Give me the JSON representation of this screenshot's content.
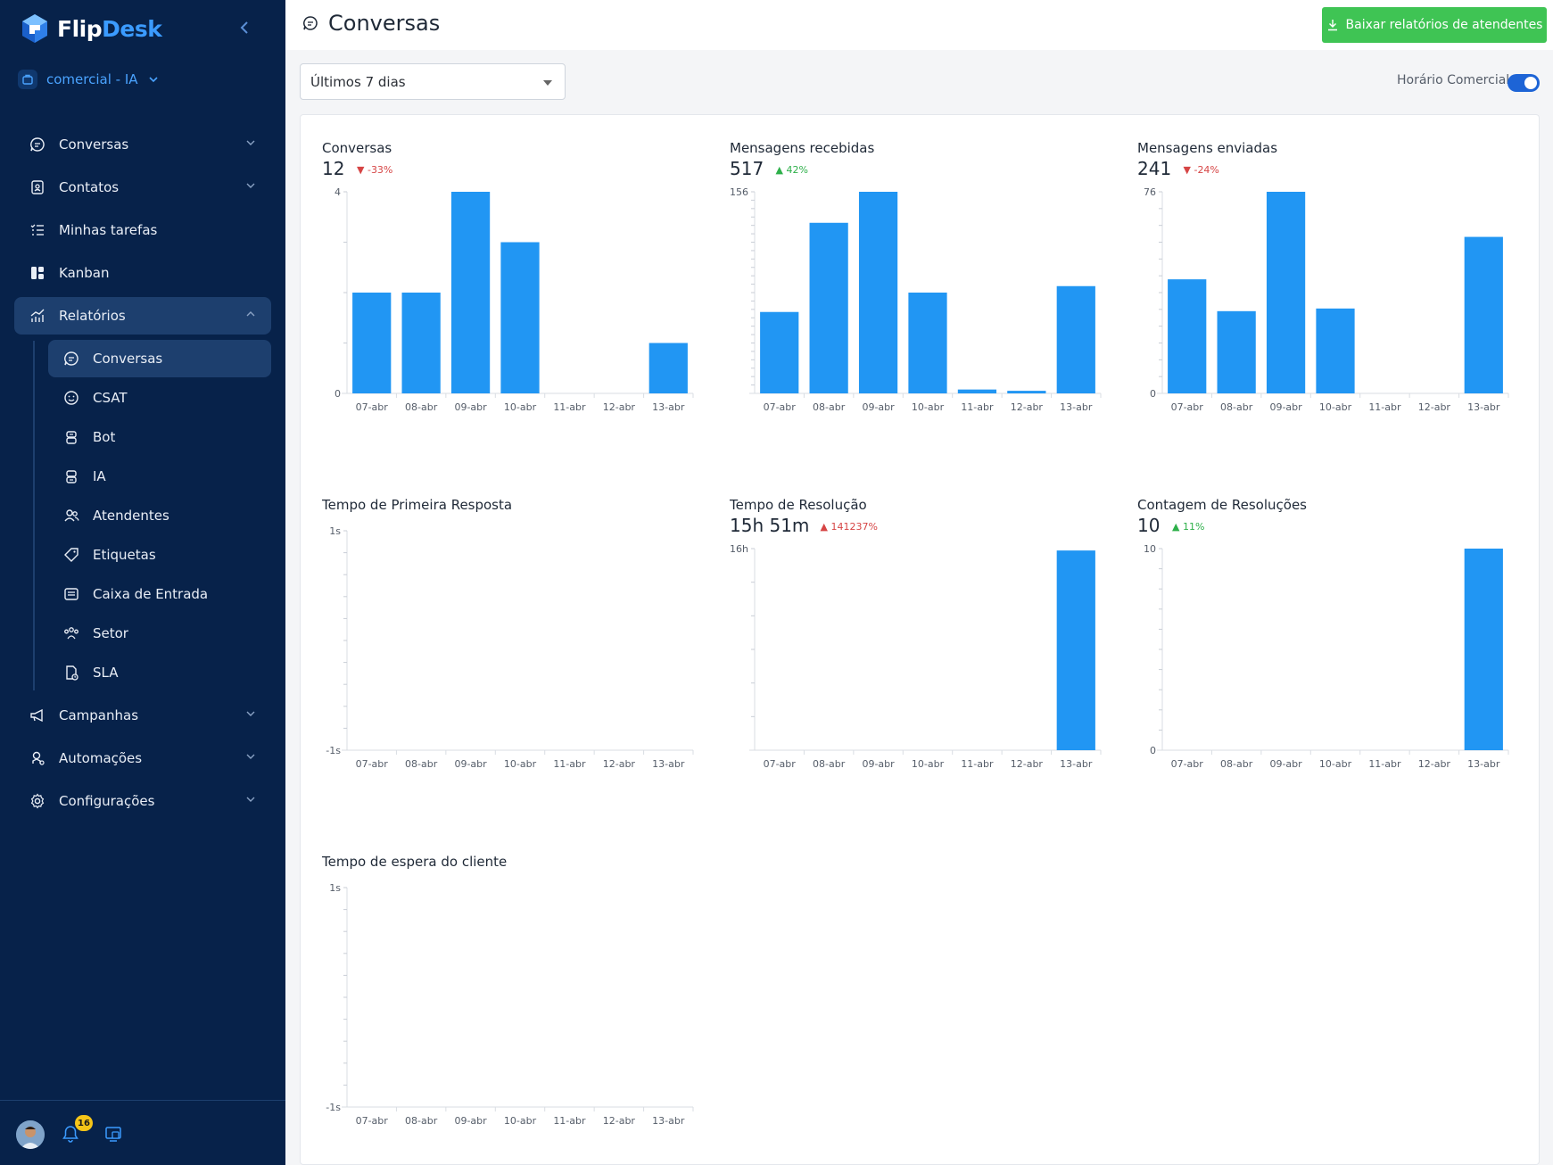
{
  "app": {
    "brand_first": "Flip",
    "brand_second": "Desk",
    "workspace": "comercial - IA"
  },
  "sidebar": {
    "items": [
      {
        "label": "Conversas",
        "icon": "chat-bubble-icon",
        "has_chevron": true
      },
      {
        "label": "Contatos",
        "icon": "contact-card-icon",
        "has_chevron": true
      },
      {
        "label": "Minhas tarefas",
        "icon": "task-list-icon",
        "has_chevron": false
      },
      {
        "label": "Kanban",
        "icon": "kanban-board-icon",
        "has_chevron": false
      },
      {
        "label": "Relatórios",
        "icon": "trend-chart-icon",
        "has_chevron": true,
        "expanded": true
      }
    ],
    "sub_items": [
      {
        "label": "Conversas",
        "icon": "chat-bubble-icon",
        "active": true
      },
      {
        "label": "CSAT",
        "icon": "smiley-icon"
      },
      {
        "label": "Bot",
        "icon": "bot-icon"
      },
      {
        "label": "IA",
        "icon": "ai-bot-icon"
      },
      {
        "label": "Atendentes",
        "icon": "users-icon"
      },
      {
        "label": "Etiquetas",
        "icon": "tag-icon"
      },
      {
        "label": "Caixa de Entrada",
        "icon": "inbox-icon"
      },
      {
        "label": "Setor",
        "icon": "team-icon"
      },
      {
        "label": "SLA",
        "icon": "sla-document-icon"
      }
    ],
    "bottom_items": [
      {
        "label": "Campanhas",
        "icon": "megaphone-icon"
      },
      {
        "label": "Automações",
        "icon": "automation-icon"
      },
      {
        "label": "Configurações",
        "icon": "gear-icon"
      }
    ],
    "notification_count": "16"
  },
  "header": {
    "title": "Conversas",
    "download_label": "Baixar relatórios de atendentes"
  },
  "filters": {
    "period": "Últimos 7 dias",
    "business_hours_label": "Horário Comercial",
    "business_hours_on": true
  },
  "colors": {
    "sidebar_bg": "#07224a",
    "bar": "#2196f3",
    "primary_button": "#3fc454",
    "toggle": "#1d64d6",
    "delta_up": "#2eb04a",
    "delta_down": "#d64545"
  },
  "cards": [
    {
      "title": "Conversas",
      "value": "12",
      "delta": "-33%",
      "delta_dir": "down"
    },
    {
      "title": "Mensagens recebidas",
      "value": "517",
      "delta": "42%",
      "delta_dir": "up"
    },
    {
      "title": "Mensagens enviadas",
      "value": "241",
      "delta": "-24%",
      "delta_dir": "down"
    },
    {
      "title": "Tempo de Primeira Resposta",
      "value": "",
      "delta": "",
      "delta_dir": ""
    },
    {
      "title": "Tempo de Resolução",
      "value": "15h 51m",
      "delta": "141237%",
      "delta_dir": "up-red"
    },
    {
      "title": "Contagem de Resoluções",
      "value": "10",
      "delta": "11%",
      "delta_dir": "up"
    },
    {
      "title": "Tempo de espera do cliente",
      "value": "",
      "delta": "",
      "delta_dir": ""
    }
  ],
  "chart_data": [
    {
      "type": "bar",
      "categories": [
        "07-abr",
        "08-abr",
        "09-abr",
        "10-abr",
        "11-abr",
        "12-abr",
        "13-abr"
      ],
      "values": [
        2,
        2,
        4,
        3,
        0,
        0,
        1
      ],
      "ylim": [
        0,
        4
      ],
      "ytick_labels": [
        "0",
        "4"
      ],
      "minor_ticks": 4
    },
    {
      "type": "bar",
      "categories": [
        "07-abr",
        "08-abr",
        "09-abr",
        "10-abr",
        "11-abr",
        "12-abr",
        "13-abr"
      ],
      "values": [
        63,
        132,
        156,
        78,
        3,
        2,
        83
      ],
      "ylim": [
        0,
        156
      ],
      "ytick_labels": [
        "",
        "156"
      ],
      "minor_ticks": 24
    },
    {
      "type": "bar",
      "categories": [
        "07-abr",
        "08-abr",
        "09-abr",
        "10-abr",
        "11-abr",
        "12-abr",
        "13-abr"
      ],
      "values": [
        43,
        31,
        76,
        32,
        0,
        0,
        59
      ],
      "ylim": [
        0,
        76
      ],
      "ytick_labels": [
        "0",
        "76"
      ],
      "minor_ticks": 12
    },
    {
      "type": "bar",
      "categories": [
        "07-abr",
        "08-abr",
        "09-abr",
        "10-abr",
        "11-abr",
        "12-abr",
        "13-abr"
      ],
      "values": [
        0,
        0,
        0,
        0,
        0,
        0,
        0
      ],
      "ylim": [
        -1,
        1
      ],
      "ytick_labels": [
        "-1s",
        "1s"
      ],
      "minor_ticks": 10
    },
    {
      "type": "bar",
      "categories": [
        "07-abr",
        "08-abr",
        "09-abr",
        "10-abr",
        "11-abr",
        "12-abr",
        "13-abr"
      ],
      "values": [
        0,
        0,
        0,
        0,
        0,
        0,
        15.85
      ],
      "ylim": [
        0,
        16
      ],
      "ytick_labels": [
        "",
        "16h"
      ],
      "minor_ticks": 6
    },
    {
      "type": "bar",
      "categories": [
        "07-abr",
        "08-abr",
        "09-abr",
        "10-abr",
        "11-abr",
        "12-abr",
        "13-abr"
      ],
      "values": [
        0,
        0,
        0,
        0,
        0,
        0,
        10
      ],
      "ylim": [
        0,
        10
      ],
      "ytick_labels": [
        "0",
        "10"
      ],
      "minor_ticks": 10
    },
    {
      "type": "bar",
      "categories": [
        "07-abr",
        "08-abr",
        "09-abr",
        "10-abr",
        "11-abr",
        "12-abr",
        "13-abr"
      ],
      "values": [
        0,
        0,
        0,
        0,
        0,
        0,
        0
      ],
      "ylim": [
        -1,
        1
      ],
      "ytick_labels": [
        "-1s",
        "1s"
      ],
      "minor_ticks": 10
    }
  ]
}
